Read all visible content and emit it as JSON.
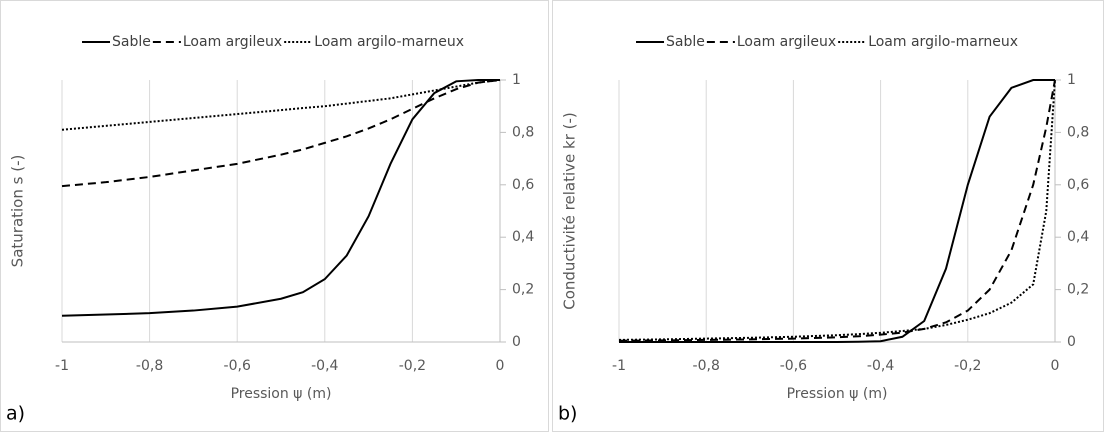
{
  "chart_data": [
    {
      "type": "line",
      "panel_label": "a)",
      "xlabel": "Pression ψ (m)",
      "ylabel": "Saturation s (-)",
      "x": [
        -1,
        -0.9,
        -0.8,
        -0.7,
        -0.6,
        -0.5,
        -0.45,
        -0.4,
        -0.35,
        -0.3,
        -0.25,
        -0.2,
        -0.15,
        -0.1,
        -0.05,
        0
      ],
      "series": [
        {
          "name": "Sable",
          "color": "#000000",
          "dash": "solid",
          "values": [
            0.1,
            0.105,
            0.11,
            0.12,
            0.135,
            0.165,
            0.19,
            0.24,
            0.33,
            0.48,
            0.68,
            0.85,
            0.95,
            0.995,
            1,
            1
          ]
        },
        {
          "name": "Loam argileux",
          "color": "#000000",
          "dash": "dashed",
          "values": [
            0.595,
            0.61,
            0.63,
            0.655,
            0.68,
            0.715,
            0.735,
            0.76,
            0.785,
            0.815,
            0.85,
            0.89,
            0.93,
            0.965,
            0.99,
            1
          ]
        },
        {
          "name": "Loam argilo-marneux",
          "color": "#000000",
          "dash": "dotted",
          "values": [
            0.81,
            0.825,
            0.84,
            0.855,
            0.87,
            0.885,
            0.893,
            0.9,
            0.91,
            0.92,
            0.93,
            0.945,
            0.96,
            0.975,
            0.99,
            1
          ]
        }
      ],
      "xlim": [
        -1,
        0
      ],
      "xticks": [
        -1,
        {
          "value": -0.8,
          "label": "-0,8"
        },
        {
          "value": -0.6,
          "label": "-0,6"
        },
        {
          "value": -0.4,
          "label": "-0,4"
        },
        {
          "value": -0.2,
          "label": "-0,2"
        },
        0
      ],
      "ylim": [
        0,
        1
      ],
      "yticks": [
        0,
        {
          "value": 0.2,
          "label": "0,2"
        },
        {
          "value": 0.4,
          "label": "0,4"
        },
        {
          "value": 0.6,
          "label": "0,6"
        },
        {
          "value": 0.8,
          "label": "0,8"
        },
        1
      ],
      "grid": "x",
      "legend": "top"
    },
    {
      "type": "line",
      "panel_label": "b)",
      "xlabel": "Pression ψ (m)",
      "ylabel": "Conductivité relative kr (-)",
      "x": [
        -1,
        -0.9,
        -0.8,
        -0.7,
        -0.6,
        -0.5,
        -0.45,
        -0.4,
        -0.35,
        -0.3,
        -0.25,
        -0.2,
        -0.15,
        -0.1,
        -0.05,
        -0.02,
        0
      ],
      "series": [
        {
          "name": "Sable",
          "color": "#000000",
          "dash": "solid",
          "values": [
            0,
            0,
            0,
            0,
            0,
            0,
            0.001,
            0.003,
            0.02,
            0.08,
            0.28,
            0.6,
            0.86,
            0.97,
            1,
            1,
            1
          ]
        },
        {
          "name": "Loam argileux",
          "color": "#000000",
          "dash": "dashed",
          "values": [
            0.005,
            0.006,
            0.008,
            0.01,
            0.013,
            0.018,
            0.022,
            0.028,
            0.036,
            0.05,
            0.075,
            0.12,
            0.2,
            0.35,
            0.6,
            0.82,
            1
          ]
        },
        {
          "name": "Loam argilo-marneux",
          "color": "#000000",
          "dash": "dotted",
          "values": [
            0.008,
            0.01,
            0.013,
            0.016,
            0.02,
            0.026,
            0.03,
            0.035,
            0.042,
            0.05,
            0.065,
            0.085,
            0.11,
            0.15,
            0.22,
            0.5,
            1
          ]
        }
      ],
      "xlim": [
        -1,
        0
      ],
      "xticks": [
        -1,
        {
          "value": -0.8,
          "label": "-0,8"
        },
        {
          "value": -0.6,
          "label": "-0,6"
        },
        {
          "value": -0.4,
          "label": "-0,4"
        },
        {
          "value": -0.2,
          "label": "-0,2"
        },
        0
      ],
      "ylim": [
        0,
        1
      ],
      "yticks": [
        0,
        {
          "value": 0.2,
          "label": "0,2"
        },
        {
          "value": 0.4,
          "label": "0,4"
        },
        {
          "value": 0.6,
          "label": "0,6"
        },
        {
          "value": 0.8,
          "label": "0,8"
        },
        1
      ],
      "grid": "x",
      "legend": "top"
    }
  ]
}
